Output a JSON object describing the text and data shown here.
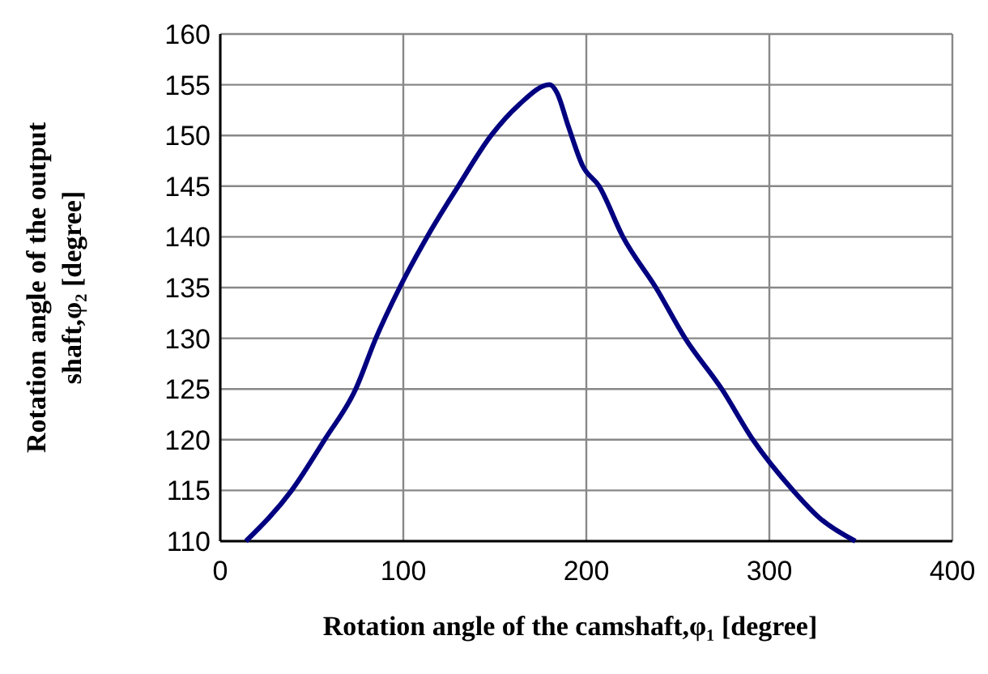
{
  "chart_data": {
    "type": "line",
    "xlabel": "Rotation angle of the camshaft,φ₁  [degree]",
    "ylabel": "Rotation angle of the output\nshaft,φ₂  [degree]",
    "xlim": [
      0,
      400
    ],
    "xticks": [
      0,
      100,
      200,
      300,
      400
    ],
    "ylim": [
      110,
      160
    ],
    "yticks": [
      110,
      115,
      120,
      125,
      130,
      135,
      140,
      145,
      150,
      155,
      160
    ],
    "grid": true,
    "marker": "none",
    "line_style": "solid",
    "series": [
      {
        "color": "#000080",
        "x": [
          14,
          39,
          57,
          74,
          85,
          98,
          113,
          130,
          148,
          163,
          180,
          184,
          190,
          198,
          207,
          220,
          238,
          254,
          274,
          291,
          313,
          328,
          347
        ],
        "values": [
          110,
          115,
          120,
          125,
          130,
          135,
          140,
          145,
          150,
          153,
          155,
          154.2,
          151,
          147,
          145,
          140,
          135,
          130,
          125,
          120,
          115,
          112.2,
          110
        ]
      }
    ]
  }
}
